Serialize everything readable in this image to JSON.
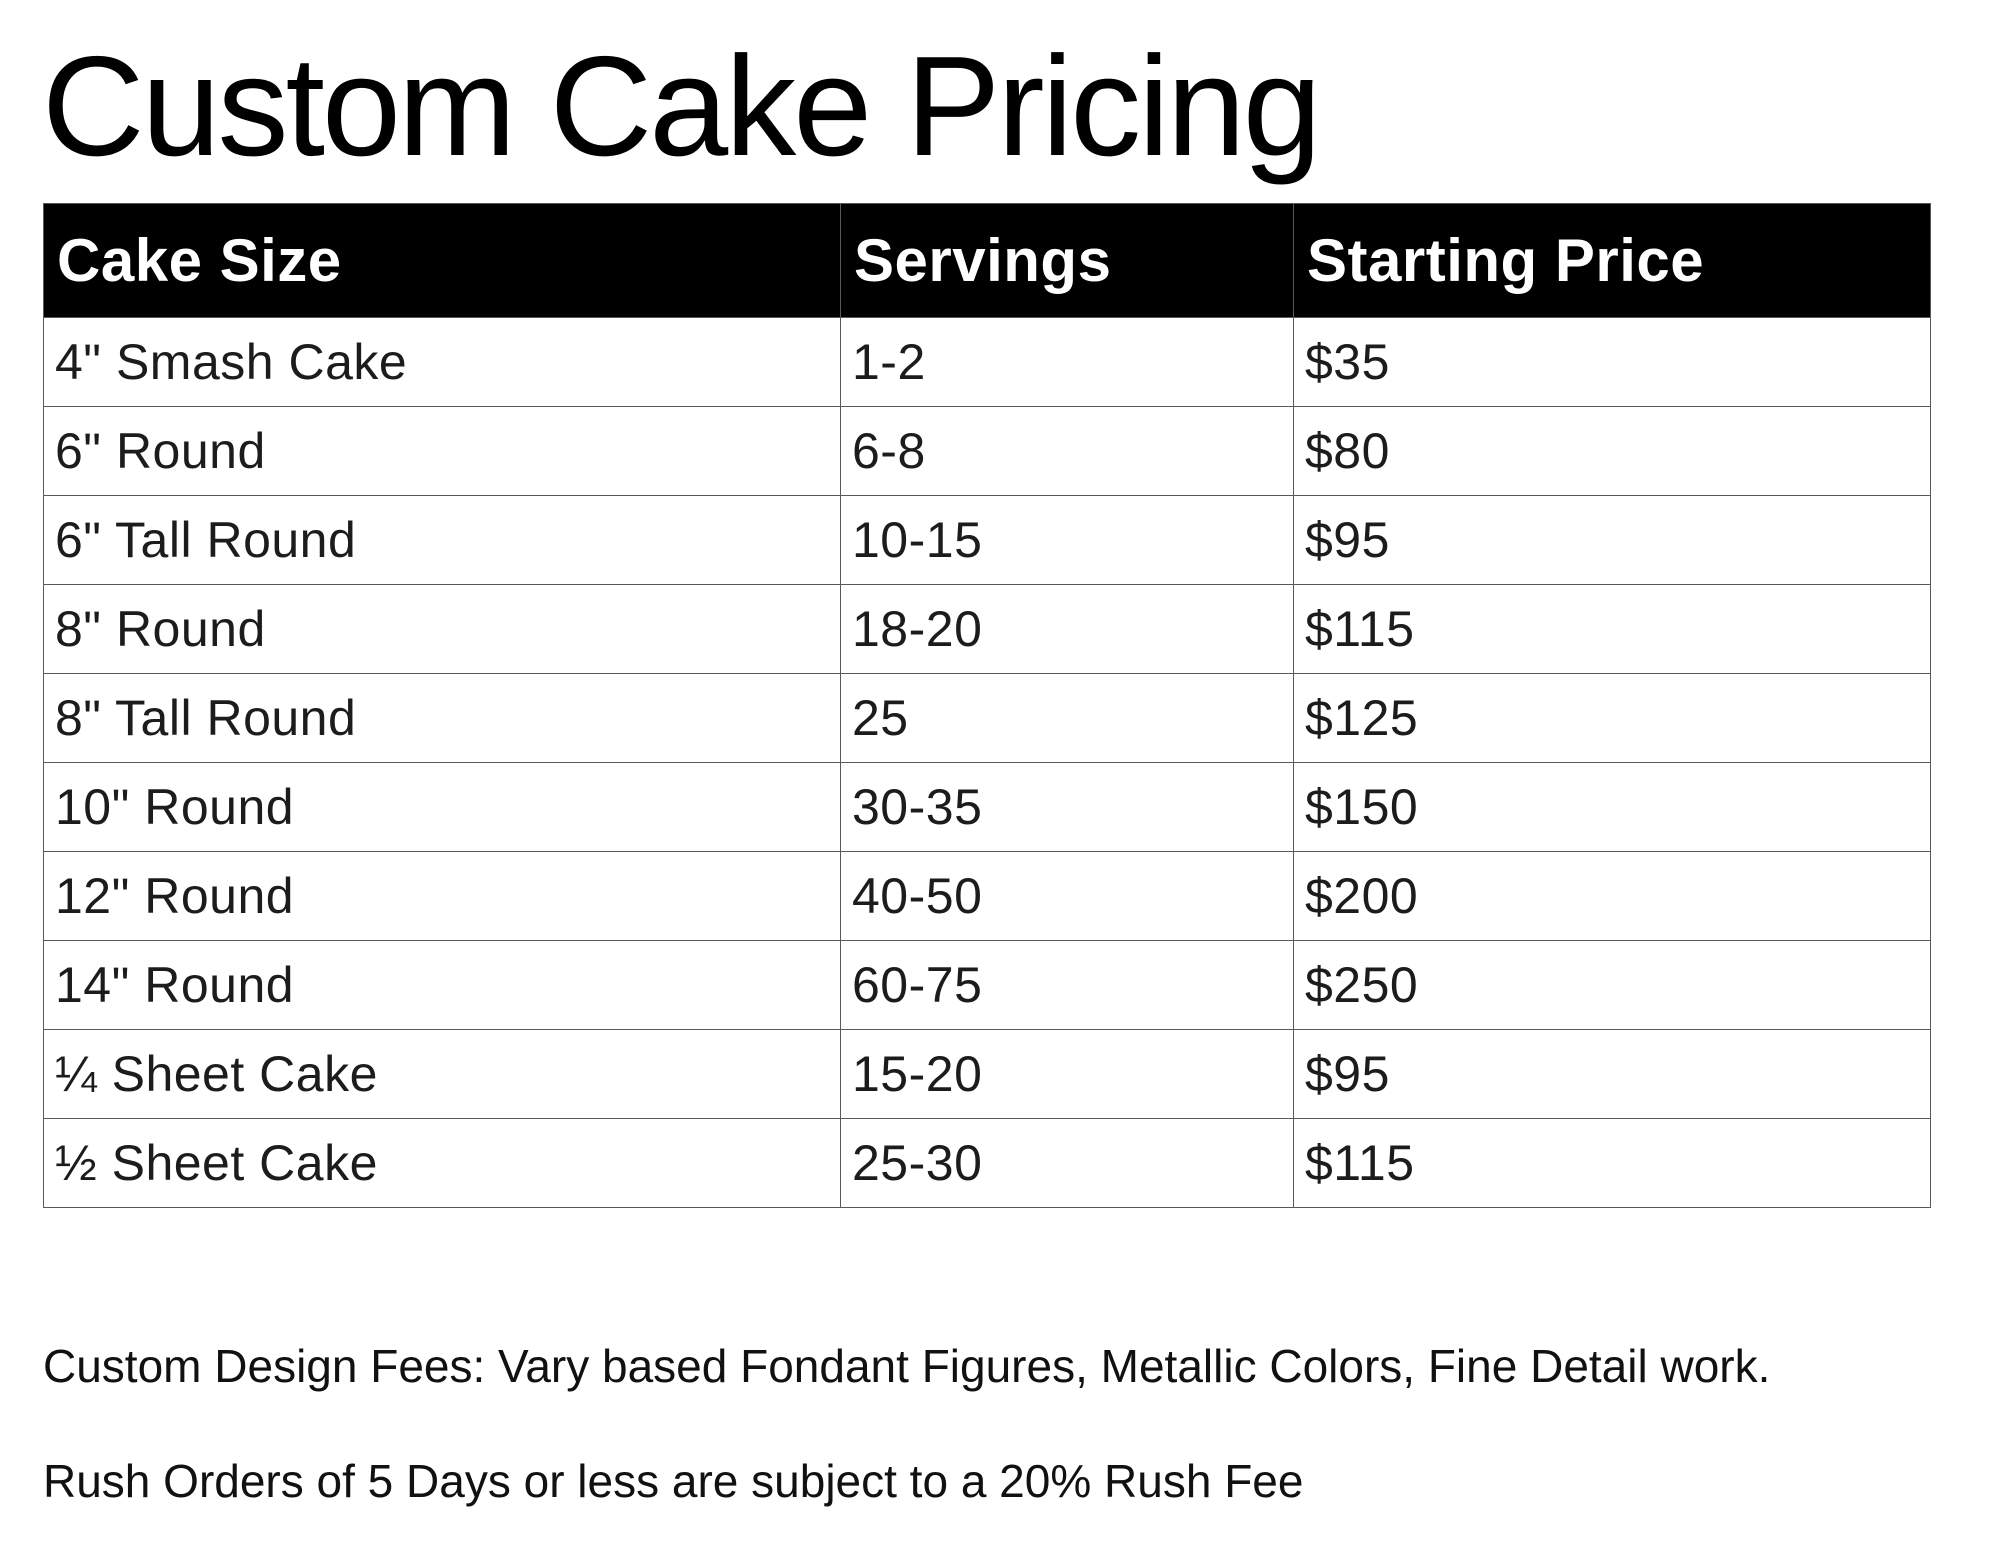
{
  "title": "Custom Cake Pricing",
  "table": {
    "columns": [
      "Cake Size",
      "Servings",
      "Starting Price"
    ],
    "rows": [
      {
        "size": "4\" Smash Cake",
        "servings": "1-2",
        "price": "$35"
      },
      {
        "size": "6\" Round",
        "servings": "6-8",
        "price": "$80"
      },
      {
        "size": "6\" Tall Round",
        "servings": "10-15",
        "price": "$95"
      },
      {
        "size": "8\" Round",
        "servings": "18-20",
        "price": "$115"
      },
      {
        "size": "8\" Tall Round",
        "servings": "25",
        "price": "$125"
      },
      {
        "size": "10\" Round",
        "servings": "30-35",
        "price": "$150"
      },
      {
        "size": "12\" Round",
        "servings": "40-50",
        "price": "$200"
      },
      {
        "size": "14\" Round",
        "servings": "60-75",
        "price": "$250"
      },
      {
        "size": "¼ Sheet Cake",
        "servings": "15-20",
        "price": "$95"
      },
      {
        "size": "½ Sheet Cake",
        "servings": "25-30",
        "price": "$115"
      }
    ]
  },
  "notes": [
    "Custom Design Fees: Vary based Fondant Figures, Metallic Colors, Fine Detail work.",
    "Rush Orders of 5 Days or less are subject to a 20% Rush Fee"
  ],
  "colors": {
    "header_bg": "#000000",
    "header_text": "#ffffff",
    "body_text": "#1c1c1c",
    "grid_line": "#595959"
  }
}
